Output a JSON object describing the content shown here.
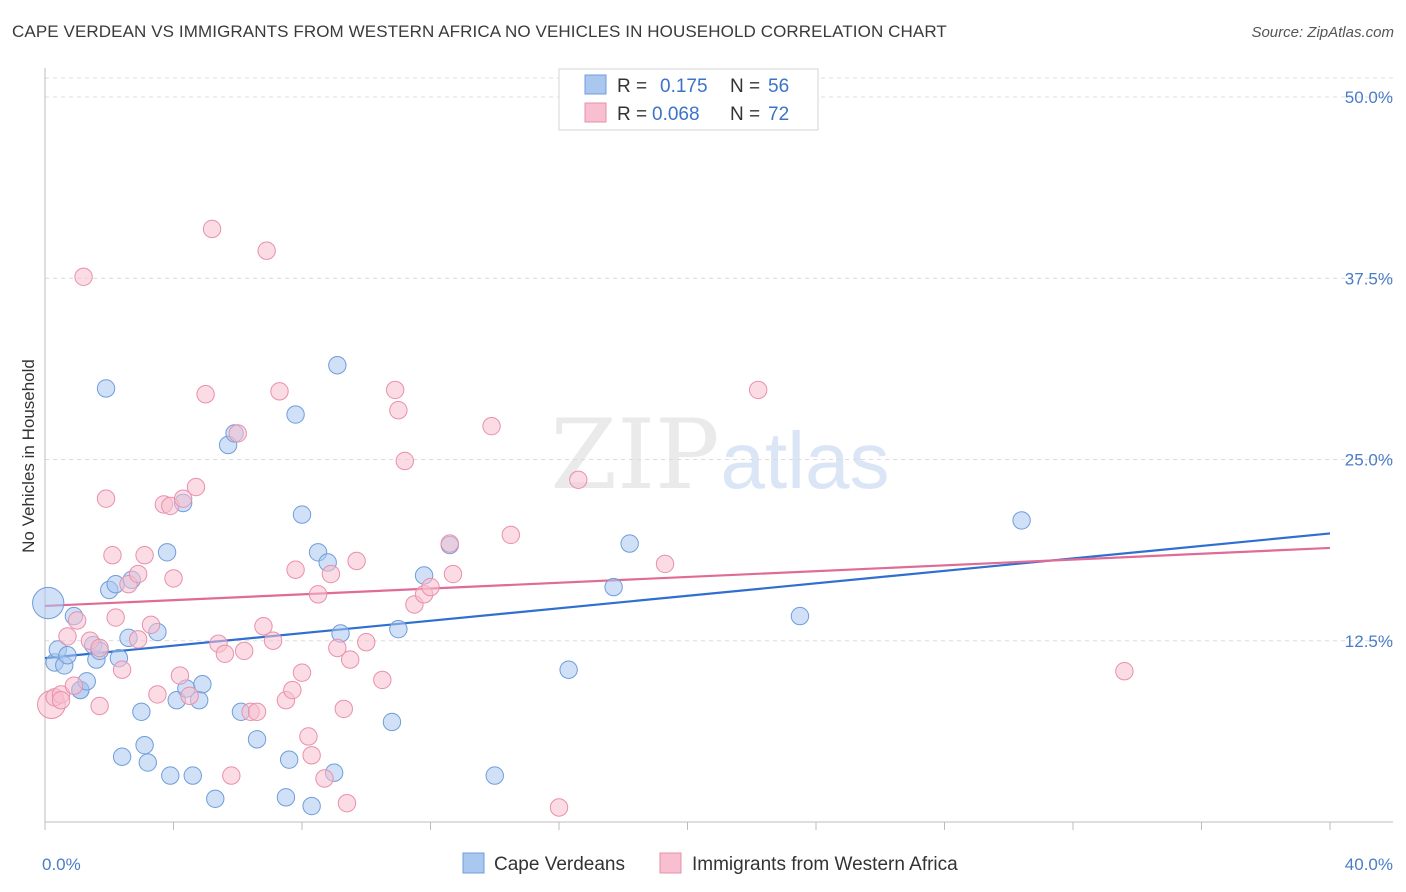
{
  "title": "CAPE VERDEAN VS IMMIGRANTS FROM WESTERN AFRICA NO VEHICLES IN HOUSEHOLD CORRELATION CHART",
  "source": "Source: ZipAtlas.com",
  "watermark": {
    "zip": "ZIP",
    "atlas": "atlas"
  },
  "legend_top": {
    "rows": [
      {
        "r_label": "R =",
        "r_value": "0.175",
        "n_label": "N =",
        "n_value": "56"
      },
      {
        "r_label": "R =",
        "r_value": "0.068",
        "n_label": "N =",
        "n_value": "72"
      }
    ]
  },
  "chart_data": {
    "type": "scatter",
    "ylabel": "No Vehicles in Household",
    "x_tick_labels": {
      "min": "0.0%",
      "max": "40.0%"
    },
    "y_tick_labels": [
      "12.5%",
      "25.0%",
      "37.5%",
      "50.0%"
    ],
    "y_ticks": [
      12.5,
      25.0,
      37.5,
      50.0
    ],
    "xlim": [
      0,
      42
    ],
    "ylim": [
      0,
      52
    ],
    "colors": {
      "blue_fill": "#a9c7ef",
      "blue_stroke": "#6f9ddb",
      "blue_line": "#2f6fcf",
      "pink_fill": "#f7bfd0",
      "pink_stroke": "#ea8fac",
      "pink_line": "#e06b95"
    },
    "series": [
      {
        "name": "Cape Verdeans",
        "color": "#a9c7ef",
        "trend": {
          "x0": 0,
          "y0": 11.3,
          "x1": 40,
          "y1": 19.9
        },
        "points": [
          [
            0.1,
            15.1,
            18
          ],
          [
            0.3,
            11.0,
            10
          ],
          [
            0.4,
            11.9,
            10
          ],
          [
            0.6,
            10.8,
            10
          ],
          [
            0.7,
            11.5,
            10
          ],
          [
            0.9,
            14.2,
            10
          ],
          [
            1.1,
            9.1,
            10
          ],
          [
            1.1,
            9.1,
            10
          ],
          [
            1.3,
            9.7,
            10
          ],
          [
            1.5,
            12.2,
            10
          ],
          [
            1.6,
            11.2,
            10
          ],
          [
            1.7,
            11.8,
            10
          ],
          [
            1.9,
            29.9,
            10
          ],
          [
            2.0,
            16.0,
            10
          ],
          [
            2.2,
            16.4,
            10
          ],
          [
            2.3,
            11.3,
            10
          ],
          [
            2.4,
            4.5,
            10
          ],
          [
            2.6,
            12.7,
            10
          ],
          [
            2.7,
            16.7,
            10
          ],
          [
            3.0,
            7.6,
            10
          ],
          [
            3.1,
            5.3,
            10
          ],
          [
            3.2,
            4.1,
            10
          ],
          [
            3.5,
            13.1,
            10
          ],
          [
            3.8,
            18.6,
            10
          ],
          [
            3.9,
            3.2,
            10
          ],
          [
            4.1,
            8.4,
            10
          ],
          [
            4.3,
            22.0,
            10
          ],
          [
            4.4,
            9.2,
            10
          ],
          [
            4.6,
            3.2,
            10
          ],
          [
            4.8,
            8.4,
            10
          ],
          [
            4.9,
            9.5,
            10
          ],
          [
            5.3,
            1.6,
            10
          ],
          [
            5.7,
            26.0,
            10
          ],
          [
            5.9,
            26.8,
            10
          ],
          [
            6.1,
            7.6,
            10
          ],
          [
            6.6,
            5.7,
            10
          ],
          [
            7.5,
            1.7,
            10
          ],
          [
            7.6,
            4.3,
            10
          ],
          [
            7.8,
            28.1,
            10
          ],
          [
            8.0,
            21.2,
            10
          ],
          [
            8.3,
            1.1,
            10
          ],
          [
            8.5,
            18.6,
            10
          ],
          [
            8.8,
            17.9,
            10
          ],
          [
            9.0,
            3.4,
            10
          ],
          [
            9.1,
            31.5,
            10
          ],
          [
            9.2,
            13.0,
            10
          ],
          [
            10.8,
            6.9,
            10
          ],
          [
            11.0,
            13.3,
            10
          ],
          [
            11.8,
            17.0,
            10
          ],
          [
            12.6,
            19.1,
            10
          ],
          [
            14.0,
            3.2,
            10
          ],
          [
            16.3,
            10.5,
            10
          ],
          [
            17.7,
            16.2,
            10
          ],
          [
            18.2,
            19.2,
            10
          ],
          [
            23.5,
            14.2,
            10
          ],
          [
            30.4,
            20.8,
            10
          ]
        ]
      },
      {
        "name": "Immigrants from Western Africa",
        "color": "#f7bfd0",
        "trend": {
          "x0": 0,
          "y0": 14.9,
          "x1": 40,
          "y1": 18.9
        },
        "points": [
          [
            0.2,
            8.1,
            16
          ],
          [
            0.3,
            8.6,
            10
          ],
          [
            0.5,
            8.8,
            10
          ],
          [
            0.5,
            8.4,
            10
          ],
          [
            0.7,
            12.8,
            10
          ],
          [
            0.9,
            9.4,
            10
          ],
          [
            1.0,
            13.9,
            10
          ],
          [
            1.2,
            37.6,
            10
          ],
          [
            1.4,
            12.5,
            10
          ],
          [
            1.7,
            12.0,
            10
          ],
          [
            1.7,
            8.0,
            10
          ],
          [
            1.9,
            22.3,
            10
          ],
          [
            2.1,
            18.4,
            10
          ],
          [
            2.2,
            14.1,
            10
          ],
          [
            2.4,
            10.5,
            10
          ],
          [
            2.6,
            16.4,
            10
          ],
          [
            2.9,
            17.1,
            10
          ],
          [
            2.9,
            12.6,
            10
          ],
          [
            3.1,
            18.4,
            10
          ],
          [
            3.3,
            13.6,
            10
          ],
          [
            3.5,
            8.8,
            10
          ],
          [
            3.7,
            21.9,
            10
          ],
          [
            3.9,
            21.8,
            10
          ],
          [
            4.0,
            16.8,
            10
          ],
          [
            4.2,
            10.1,
            10
          ],
          [
            4.3,
            22.3,
            10
          ],
          [
            4.5,
            8.7,
            10
          ],
          [
            4.7,
            23.1,
            10
          ],
          [
            5.0,
            29.5,
            10
          ],
          [
            5.2,
            40.9,
            10
          ],
          [
            5.4,
            12.3,
            10
          ],
          [
            5.6,
            11.6,
            10
          ],
          [
            5.8,
            3.2,
            10
          ],
          [
            6.0,
            26.8,
            10
          ],
          [
            6.2,
            11.8,
            10
          ],
          [
            6.4,
            7.6,
            10
          ],
          [
            6.6,
            7.6,
            10
          ],
          [
            6.8,
            13.5,
            10
          ],
          [
            6.9,
            39.4,
            10
          ],
          [
            7.1,
            12.5,
            10
          ],
          [
            7.3,
            29.7,
            10
          ],
          [
            7.5,
            8.4,
            10
          ],
          [
            7.7,
            9.1,
            10
          ],
          [
            7.8,
            17.4,
            10
          ],
          [
            8.0,
            10.3,
            10
          ],
          [
            8.2,
            5.9,
            10
          ],
          [
            8.3,
            4.6,
            10
          ],
          [
            8.5,
            15.7,
            10
          ],
          [
            8.7,
            3.0,
            10
          ],
          [
            8.9,
            17.1,
            10
          ],
          [
            9.1,
            12.0,
            10
          ],
          [
            9.3,
            7.8,
            10
          ],
          [
            9.4,
            1.3,
            10
          ],
          [
            9.5,
            11.2,
            10
          ],
          [
            9.7,
            18.0,
            10
          ],
          [
            10.0,
            12.4,
            10
          ],
          [
            10.5,
            9.8,
            10
          ],
          [
            10.9,
            29.8,
            10
          ],
          [
            11.0,
            28.4,
            10
          ],
          [
            11.2,
            24.9,
            10
          ],
          [
            11.5,
            15.0,
            10
          ],
          [
            11.8,
            15.7,
            10
          ],
          [
            12.0,
            16.2,
            10
          ],
          [
            12.6,
            19.2,
            10
          ],
          [
            12.7,
            17.1,
            10
          ],
          [
            13.9,
            27.3,
            10
          ],
          [
            14.5,
            19.8,
            10
          ],
          [
            16.0,
            1.0,
            10
          ],
          [
            16.6,
            23.6,
            10
          ],
          [
            19.3,
            17.8,
            10
          ],
          [
            22.2,
            29.8,
            10
          ],
          [
            33.6,
            10.4,
            10
          ]
        ]
      }
    ]
  }
}
